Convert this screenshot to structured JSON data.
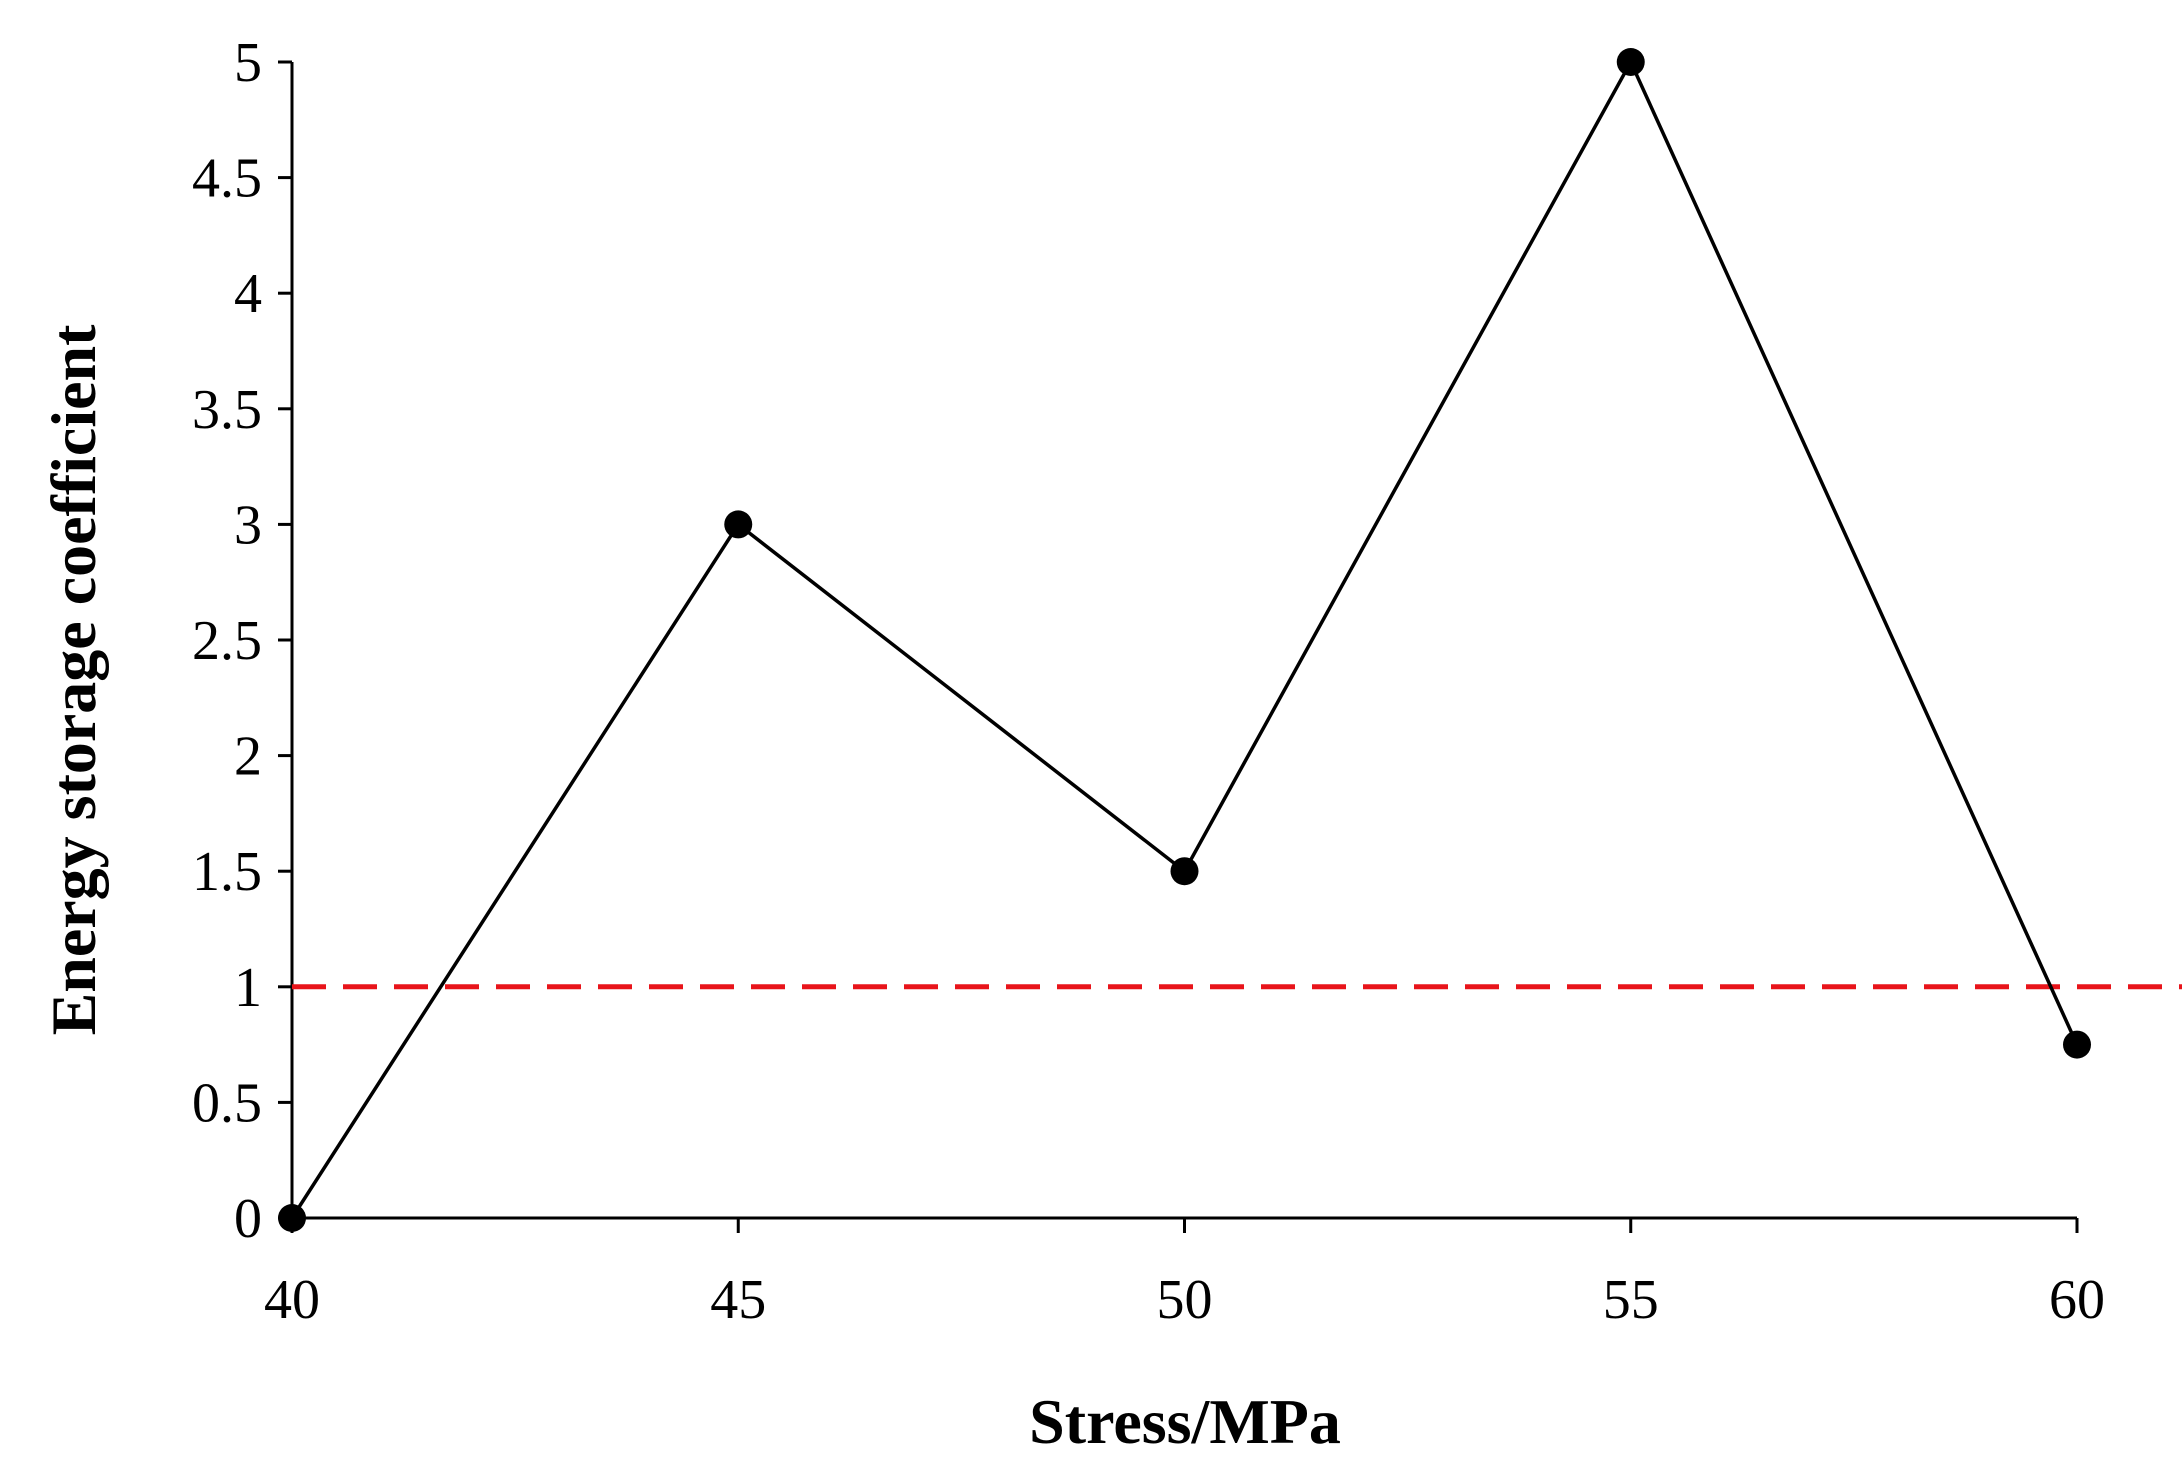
{
  "chart_data": {
    "type": "line",
    "xlabel": "Stress/MPa",
    "ylabel": "Energy storage coefficient",
    "xlim": [
      40,
      60
    ],
    "ylim": [
      0,
      5
    ],
    "x_ticks": [
      "40",
      "45",
      "50",
      "55",
      "60"
    ],
    "y_ticks": [
      "0",
      "0.5",
      "1",
      "1.5",
      "2",
      "2.5",
      "3",
      "3.5",
      "4",
      "4.5",
      "5"
    ],
    "grid": false,
    "series": [
      {
        "x": [
          40,
          45,
          50,
          55,
          60
        ],
        "y": [
          0,
          3,
          1.5,
          5,
          0.75
        ],
        "color": "#000000",
        "marker": "circle"
      }
    ],
    "reference_line": {
      "orientation": "horizontal",
      "y": 1,
      "color": "#e8141a",
      "style": "dashed"
    }
  }
}
